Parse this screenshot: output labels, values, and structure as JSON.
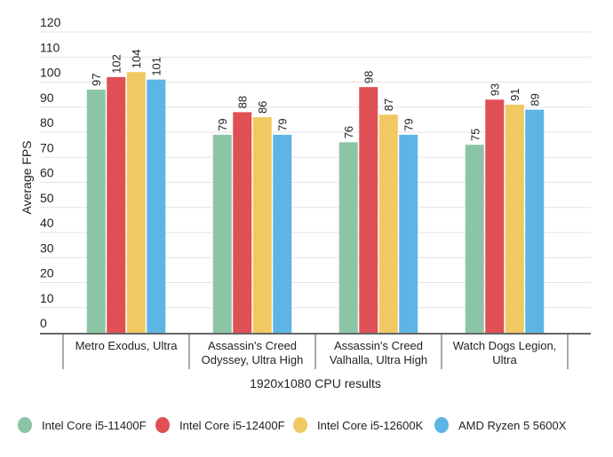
{
  "chart_data": {
    "type": "bar",
    "title": "",
    "xlabel": "1920x1080 CPU results",
    "ylabel": "Average FPS",
    "ylim": [
      0,
      120
    ],
    "yticks": [
      0,
      10,
      20,
      30,
      40,
      50,
      60,
      70,
      80,
      90,
      100,
      110,
      120
    ],
    "grid": true,
    "legend_position": "bottom",
    "categories": [
      [
        "Metro Exodus, Ultra"
      ],
      [
        "Assassin's Creed",
        "Odyssey, Ultra High"
      ],
      [
        "Assassin's Creed",
        "Valhalla, Ultra High"
      ],
      [
        "Watch Dogs Legion,",
        "Ultra"
      ]
    ],
    "series": [
      {
        "name": "Intel Core i5-11400F",
        "color": "#8cc5a5",
        "values": [
          97,
          79,
          76,
          75
        ]
      },
      {
        "name": "Intel Core i5-12400F",
        "color": "#df5054",
        "values": [
          102,
          88,
          98,
          93
        ]
      },
      {
        "name": "Intel Core i5-12600K",
        "color": "#f1c962",
        "values": [
          104,
          86,
          87,
          91
        ]
      },
      {
        "name": "AMD Ryzen 5 5600X",
        "color": "#5cb5e5",
        "values": [
          101,
          79,
          79,
          89
        ]
      }
    ]
  }
}
